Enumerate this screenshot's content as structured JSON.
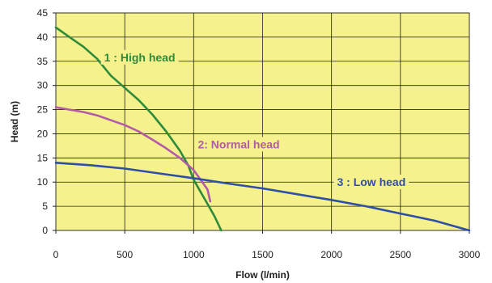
{
  "chart_data": {
    "type": "line",
    "title": "",
    "xlabel": "Flow (l/min)",
    "ylabel": "Head (m)",
    "xlim": [
      0,
      3000
    ],
    "ylim": [
      0,
      45
    ],
    "x_ticks": [
      0,
      500,
      1000,
      1500,
      2000,
      2500,
      3000
    ],
    "y_ticks": [
      0,
      5,
      10,
      15,
      20,
      25,
      30,
      35,
      40,
      45
    ],
    "grid": true,
    "legend": "none",
    "plot_background": "#f5f18c",
    "series": [
      {
        "name": "1 : High head",
        "color": "#2e8b3a",
        "x": [
          0,
          100,
          200,
          300,
          400,
          500,
          600,
          700,
          800,
          900,
          960,
          1000,
          1050,
          1100,
          1150,
          1200
        ],
        "y": [
          42,
          40,
          38,
          35.5,
          32,
          29.5,
          27,
          24,
          20.5,
          16.5,
          13.5,
          10.5,
          8,
          5.5,
          3,
          0
        ]
      },
      {
        "name": "2: Normal head",
        "color": "#b35aa8",
        "x": [
          0,
          100,
          200,
          300,
          400,
          500,
          600,
          700,
          800,
          900,
          1000,
          1050,
          1100,
          1120
        ],
        "y": [
          25.5,
          25,
          24.5,
          23.8,
          22.8,
          21.8,
          20.5,
          18.8,
          17,
          15,
          12.5,
          10.5,
          8.5,
          6
        ]
      },
      {
        "name": "3 : Low head",
        "color": "#2f4fa5",
        "x": [
          0,
          250,
          500,
          750,
          1000,
          1250,
          1500,
          1750,
          2000,
          2250,
          2500,
          2750,
          3000
        ],
        "y": [
          14,
          13.5,
          12.8,
          11.8,
          10.8,
          9.7,
          8.7,
          7.5,
          6.3,
          5,
          3.5,
          2,
          0
        ]
      }
    ],
    "annotations": [
      {
        "text": "1 : High head",
        "series": 0,
        "x": 350,
        "y": 35
      },
      {
        "text": "2: Normal head",
        "series": 1,
        "x": 1030,
        "y": 17
      },
      {
        "text": "3 : Low head",
        "series": 2,
        "x": 2040,
        "y": 9.2
      }
    ]
  }
}
